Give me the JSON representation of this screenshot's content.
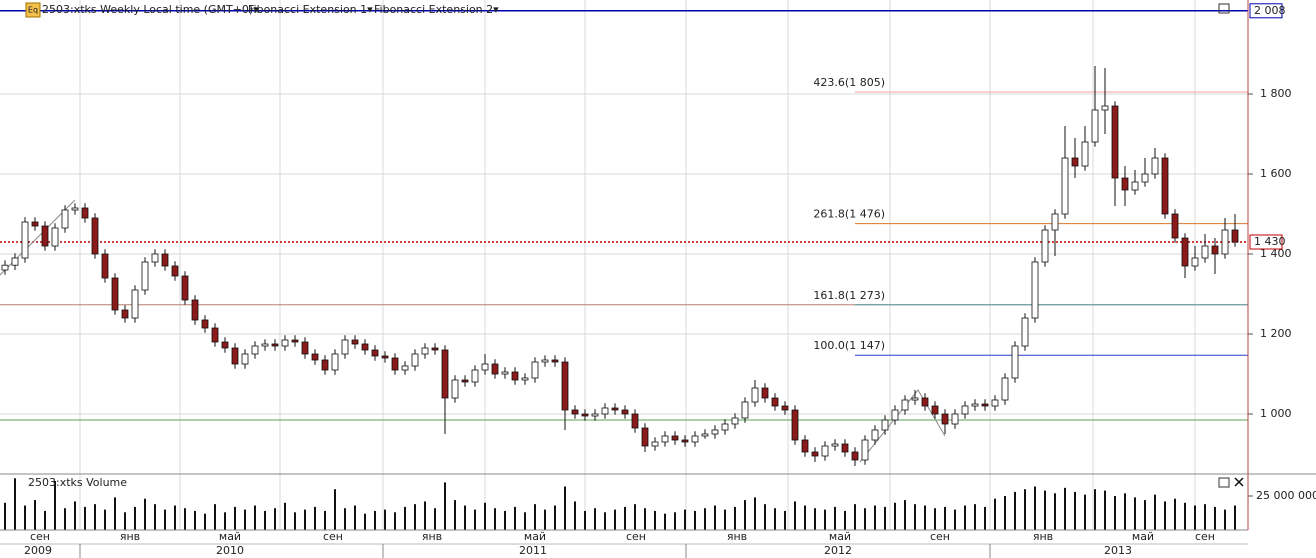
{
  "chart_data": {
    "type": "candlestick",
    "header": [
      "2503:xtks Weekly Local time (GMT+0)▾",
      "Fibonacci Extension 1▾",
      "Fibonacci Extension 2▾"
    ],
    "ylim": [
      855,
      2035
    ],
    "yticks": [
      {
        "value": 1000,
        "label": "1 000"
      },
      {
        "value": 1200,
        "label": "1 200"
      },
      {
        "value": 1400,
        "label": "1 400"
      },
      {
        "value": 1600,
        "label": "1 600"
      },
      {
        "value": 1800,
        "label": "1 800"
      }
    ],
    "grid": true,
    "up_color": "#ffffff",
    "down_color": "#8b1a1a",
    "candles": [
      [
        1360,
        1384,
        1348,
        1372
      ],
      [
        1372,
        1402,
        1360,
        1390
      ],
      [
        1390,
        1492,
        1378,
        1480
      ],
      [
        1480,
        1492,
        1458,
        1470
      ],
      [
        1470,
        1482,
        1408,
        1420
      ],
      [
        1420,
        1477,
        1408,
        1465
      ],
      [
        1465,
        1522,
        1453,
        1510
      ],
      [
        1510,
        1527,
        1498,
        1515
      ],
      [
        1515,
        1527,
        1478,
        1490
      ],
      [
        1490,
        1502,
        1388,
        1400
      ],
      [
        1400,
        1412,
        1328,
        1340
      ],
      [
        1340,
        1352,
        1248,
        1260
      ],
      [
        1260,
        1272,
        1228,
        1240
      ],
      [
        1240,
        1322,
        1228,
        1310
      ],
      [
        1310,
        1392,
        1298,
        1380
      ],
      [
        1380,
        1412,
        1368,
        1400
      ],
      [
        1400,
        1412,
        1358,
        1370
      ],
      [
        1370,
        1382,
        1333,
        1345
      ],
      [
        1345,
        1357,
        1273,
        1285
      ],
      [
        1285,
        1297,
        1223,
        1235
      ],
      [
        1235,
        1247,
        1203,
        1215
      ],
      [
        1215,
        1227,
        1168,
        1180
      ],
      [
        1180,
        1192,
        1153,
        1165
      ],
      [
        1165,
        1177,
        1113,
        1125
      ],
      [
        1125,
        1162,
        1113,
        1150
      ],
      [
        1150,
        1182,
        1138,
        1170
      ],
      [
        1170,
        1187,
        1158,
        1175
      ],
      [
        1175,
        1187,
        1158,
        1170
      ],
      [
        1170,
        1197,
        1158,
        1185
      ],
      [
        1185,
        1197,
        1168,
        1180
      ],
      [
        1180,
        1192,
        1138,
        1150
      ],
      [
        1150,
        1162,
        1123,
        1135
      ],
      [
        1135,
        1147,
        1098,
        1110
      ],
      [
        1110,
        1162,
        1098,
        1150
      ],
      [
        1150,
        1197,
        1138,
        1185
      ],
      [
        1185,
        1197,
        1163,
        1175
      ],
      [
        1175,
        1187,
        1148,
        1160
      ],
      [
        1160,
        1172,
        1133,
        1145
      ],
      [
        1145,
        1157,
        1128,
        1140
      ],
      [
        1140,
        1152,
        1098,
        1110
      ],
      [
        1110,
        1132,
        1098,
        1120
      ],
      [
        1120,
        1162,
        1108,
        1150
      ],
      [
        1150,
        1177,
        1138,
        1165
      ],
      [
        1165,
        1177,
        1148,
        1160
      ],
      [
        1160,
        1172,
        950,
        1040
      ],
      [
        1040,
        1097,
        1028,
        1085
      ],
      [
        1085,
        1097,
        1068,
        1080
      ],
      [
        1080,
        1122,
        1068,
        1110
      ],
      [
        1110,
        1150,
        1098,
        1125
      ],
      [
        1125,
        1137,
        1088,
        1100
      ],
      [
        1100,
        1117,
        1088,
        1105
      ],
      [
        1105,
        1117,
        1073,
        1085
      ],
      [
        1085,
        1102,
        1073,
        1090
      ],
      [
        1090,
        1142,
        1078,
        1130
      ],
      [
        1130,
        1147,
        1118,
        1135
      ],
      [
        1135,
        1147,
        1118,
        1130
      ],
      [
        1130,
        1142,
        960,
        1010
      ],
      [
        1010,
        1022,
        988,
        1000
      ],
      [
        1000,
        1012,
        983,
        995
      ],
      [
        995,
        1012,
        983,
        1000
      ],
      [
        1000,
        1027,
        988,
        1015
      ],
      [
        1015,
        1027,
        998,
        1010
      ],
      [
        1010,
        1022,
        988,
        1000
      ],
      [
        1000,
        1012,
        953,
        965
      ],
      [
        965,
        977,
        905,
        920
      ],
      [
        920,
        942,
        908,
        930
      ],
      [
        930,
        957,
        918,
        945
      ],
      [
        945,
        957,
        923,
        935
      ],
      [
        935,
        947,
        918,
        930
      ],
      [
        930,
        957,
        918,
        945
      ],
      [
        945,
        962,
        938,
        950
      ],
      [
        950,
        972,
        938,
        960
      ],
      [
        960,
        987,
        948,
        975
      ],
      [
        975,
        1002,
        963,
        990
      ],
      [
        990,
        1042,
        978,
        1030
      ],
      [
        1030,
        1085,
        1018,
        1065
      ],
      [
        1065,
        1077,
        1028,
        1040
      ],
      [
        1040,
        1052,
        1008,
        1020
      ],
      [
        1020,
        1032,
        998,
        1010
      ],
      [
        1010,
        1022,
        923,
        935
      ],
      [
        935,
        947,
        893,
        905
      ],
      [
        905,
        917,
        880,
        895
      ],
      [
        895,
        932,
        883,
        920
      ],
      [
        920,
        937,
        908,
        925
      ],
      [
        925,
        937,
        893,
        905
      ],
      [
        905,
        917,
        870,
        885
      ],
      [
        885,
        947,
        873,
        935
      ],
      [
        935,
        972,
        923,
        960
      ],
      [
        960,
        997,
        948,
        985
      ],
      [
        985,
        1022,
        973,
        1010
      ],
      [
        1010,
        1047,
        998,
        1035
      ],
      [
        1035,
        1060,
        1023,
        1040
      ],
      [
        1040,
        1052,
        1008,
        1020
      ],
      [
        1020,
        1032,
        988,
        1000
      ],
      [
        1000,
        1012,
        950,
        975
      ],
      [
        975,
        1012,
        963,
        1000
      ],
      [
        1000,
        1032,
        988,
        1020
      ],
      [
        1020,
        1037,
        1008,
        1025
      ],
      [
        1025,
        1037,
        1008,
        1020
      ],
      [
        1020,
        1047,
        1008,
        1035
      ],
      [
        1035,
        1102,
        1023,
        1090
      ],
      [
        1090,
        1182,
        1078,
        1170
      ],
      [
        1170,
        1252,
        1158,
        1240
      ],
      [
        1240,
        1392,
        1228,
        1380
      ],
      [
        1380,
        1472,
        1368,
        1460
      ],
      [
        1460,
        1512,
        1395,
        1500
      ],
      [
        1500,
        1720,
        1488,
        1640
      ],
      [
        1640,
        1690,
        1590,
        1620
      ],
      [
        1620,
        1720,
        1608,
        1680
      ],
      [
        1680,
        1870,
        1668,
        1760
      ],
      [
        1760,
        1865,
        1700,
        1770
      ],
      [
        1770,
        1782,
        1520,
        1590
      ],
      [
        1590,
        1620,
        1520,
        1560
      ],
      [
        1560,
        1610,
        1548,
        1580
      ],
      [
        1580,
        1640,
        1568,
        1600
      ],
      [
        1600,
        1665,
        1588,
        1640
      ],
      [
        1640,
        1652,
        1488,
        1500
      ],
      [
        1500,
        1512,
        1428,
        1440
      ],
      [
        1440,
        1452,
        1340,
        1370
      ],
      [
        1370,
        1420,
        1358,
        1390
      ],
      [
        1390,
        1450,
        1378,
        1420
      ],
      [
        1420,
        1440,
        1350,
        1400
      ],
      [
        1400,
        1490,
        1388,
        1460
      ],
      [
        1460,
        1500,
        1418,
        1430
      ]
    ],
    "price_lines": [
      {
        "value": 2008,
        "label": "2 008",
        "color": "#0000b0"
      },
      {
        "value": 1430,
        "label": "1 430",
        "color": "#c00000"
      }
    ],
    "horizontal_line": {
      "value": 985,
      "color": "#5aa05a"
    },
    "fib_levels": [
      {
        "value": 1805,
        "label": "423.6(1 805)",
        "color": "#f2a0a8"
      },
      {
        "value": 1476,
        "label": "261.8(1 476)",
        "color": "#d9772e"
      },
      {
        "value": 1273,
        "label": "161.8(1 273)",
        "color": "#5a9aa8"
      },
      {
        "value": 1147,
        "label": "100.0(1 147)",
        "color": "#2a3fd0"
      }
    ],
    "volume": {
      "title": "2503:xtks Volume",
      "ylim": [
        0,
        39700000
      ],
      "yticks": [
        {
          "value": 25000000,
          "label": "25 000 000"
        }
      ],
      "color": "#111111",
      "values": [
        20000000,
        38000000,
        18000000,
        22000000,
        14000000,
        36000000,
        16000000,
        21000000,
        17000000,
        19000000,
        15000000,
        24000000,
        13000000,
        17000000,
        23000000,
        19000000,
        15000000,
        18000000,
        16000000,
        14000000,
        12000000,
        19000000,
        13000000,
        17000000,
        15000000,
        18000000,
        14000000,
        16000000,
        20000000,
        13000000,
        15000000,
        17000000,
        14000000,
        30000000,
        16000000,
        18000000,
        12000000,
        14000000,
        15000000,
        13000000,
        17000000,
        19000000,
        21000000,
        16000000,
        35000000,
        22000000,
        18000000,
        15000000,
        20000000,
        16000000,
        14000000,
        17000000,
        13000000,
        19000000,
        15000000,
        18000000,
        32000000,
        21000000,
        14000000,
        16000000,
        13000000,
        15000000,
        17000000,
        19000000,
        16000000,
        14000000,
        12000000,
        13000000,
        15000000,
        14000000,
        16000000,
        18000000,
        15000000,
        17000000,
        22000000,
        24000000,
        19000000,
        16000000,
        14000000,
        21000000,
        18000000,
        16000000,
        15000000,
        17000000,
        14000000,
        19000000,
        16000000,
        18000000,
        17000000,
        20000000,
        22000000,
        19000000,
        18000000,
        16000000,
        17000000,
        15000000,
        18000000,
        19000000,
        17000000,
        23000000,
        25000000,
        28000000,
        30000000,
        32000000,
        29000000,
        27000000,
        31000000,
        28000000,
        26000000,
        30000000,
        29000000,
        25000000,
        27000000,
        24000000,
        22000000,
        26000000,
        21000000,
        23000000,
        20000000,
        18000000,
        19000000,
        17000000,
        15000000,
        18000000
      ]
    },
    "months": [
      "сен",
      "янв",
      "май",
      "сен",
      "янв",
      "май",
      "сен",
      "янв",
      "май",
      "сен",
      "янв",
      "май",
      "сен"
    ],
    "years": [
      "2009",
      "2010",
      "2011",
      "2012",
      "2013"
    ]
  }
}
